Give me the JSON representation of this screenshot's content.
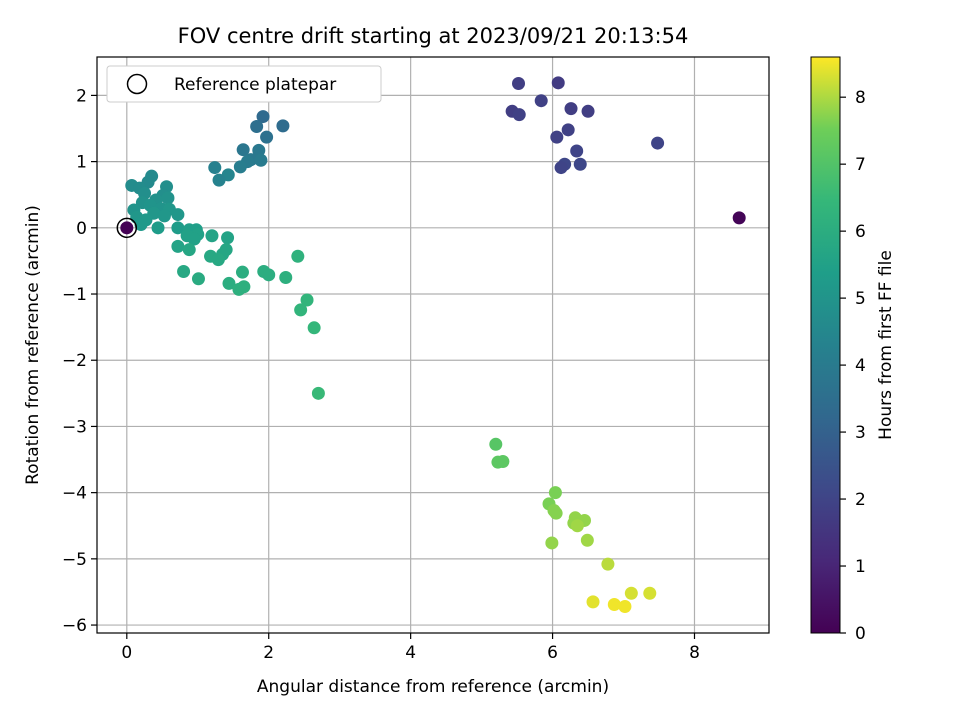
{
  "chart_data": {
    "type": "scatter",
    "title": "FOV centre drift starting at 2023/09/21 20:13:54",
    "xlabel": "Angular distance from reference (arcmin)",
    "ylabel": "Rotation from reference (arcmin)",
    "colorbar_label": "Hours from first FF file",
    "xlim": [
      -0.42,
      9.05
    ],
    "ylim": [
      -6.12,
      2.58
    ],
    "x_ticks": [
      0,
      2,
      4,
      6,
      8
    ],
    "y_ticks": [
      2,
      1,
      0,
      -1,
      -2,
      -3,
      -4,
      -5,
      -6
    ],
    "colorbar_range": [
      0,
      8.6
    ],
    "colorbar_ticks": [
      0,
      1,
      2,
      3,
      4,
      5,
      6,
      7,
      8
    ],
    "colormap": "viridis",
    "grid": true,
    "legend": {
      "position": "top-left",
      "label": "Reference platepar",
      "marker": "open-circle"
    },
    "reference_point": {
      "x": 0,
      "y": 0
    },
    "points": [
      {
        "x": 0.0,
        "y": 0.0,
        "t": 0.0
      },
      {
        "x": 8.63,
        "y": 0.15,
        "t": 0.1
      },
      {
        "x": 5.52,
        "y": 2.18,
        "t": 1.8
      },
      {
        "x": 6.08,
        "y": 2.19,
        "t": 1.7
      },
      {
        "x": 5.84,
        "y": 1.92,
        "t": 1.9
      },
      {
        "x": 5.43,
        "y": 1.76,
        "t": 1.8
      },
      {
        "x": 5.53,
        "y": 1.71,
        "t": 1.9
      },
      {
        "x": 6.26,
        "y": 1.8,
        "t": 1.8
      },
      {
        "x": 6.5,
        "y": 1.76,
        "t": 1.8
      },
      {
        "x": 6.22,
        "y": 1.48,
        "t": 1.9
      },
      {
        "x": 6.06,
        "y": 1.37,
        "t": 1.9
      },
      {
        "x": 7.48,
        "y": 1.28,
        "t": 2.0
      },
      {
        "x": 6.34,
        "y": 1.16,
        "t": 2.0
      },
      {
        "x": 6.17,
        "y": 0.96,
        "t": 2.1
      },
      {
        "x": 6.12,
        "y": 0.91,
        "t": 2.0
      },
      {
        "x": 6.39,
        "y": 0.96,
        "t": 2.1
      },
      {
        "x": 1.92,
        "y": 1.68,
        "t": 3.3
      },
      {
        "x": 1.83,
        "y": 1.53,
        "t": 3.5
      },
      {
        "x": 2.2,
        "y": 1.54,
        "t": 3.4
      },
      {
        "x": 1.97,
        "y": 1.37,
        "t": 3.6
      },
      {
        "x": 1.64,
        "y": 1.18,
        "t": 3.8
      },
      {
        "x": 1.86,
        "y": 1.17,
        "t": 3.9
      },
      {
        "x": 1.75,
        "y": 1.03,
        "t": 3.9
      },
      {
        "x": 1.89,
        "y": 1.02,
        "t": 4.0
      },
      {
        "x": 1.7,
        "y": 1.0,
        "t": 4.0
      },
      {
        "x": 1.6,
        "y": 0.92,
        "t": 4.1
      },
      {
        "x": 1.24,
        "y": 0.91,
        "t": 4.2
      },
      {
        "x": 1.43,
        "y": 0.8,
        "t": 4.4
      },
      {
        "x": 1.3,
        "y": 0.72,
        "t": 4.3
      },
      {
        "x": 0.35,
        "y": 0.78,
        "t": 4.6
      },
      {
        "x": 0.3,
        "y": 0.69,
        "t": 4.6
      },
      {
        "x": 0.07,
        "y": 0.64,
        "t": 4.7
      },
      {
        "x": 0.18,
        "y": 0.6,
        "t": 4.7
      },
      {
        "x": 0.56,
        "y": 0.62,
        "t": 4.8
      },
      {
        "x": 0.25,
        "y": 0.52,
        "t": 4.8
      },
      {
        "x": 0.51,
        "y": 0.49,
        "t": 4.8
      },
      {
        "x": 0.58,
        "y": 0.45,
        "t": 4.9
      },
      {
        "x": 0.41,
        "y": 0.42,
        "t": 4.9
      },
      {
        "x": 0.22,
        "y": 0.38,
        "t": 4.9
      },
      {
        "x": 0.33,
        "y": 0.34,
        "t": 5.0
      },
      {
        "x": 0.48,
        "y": 0.29,
        "t": 5.0
      },
      {
        "x": 0.1,
        "y": 0.27,
        "t": 5.0
      },
      {
        "x": 0.6,
        "y": 0.28,
        "t": 5.1
      },
      {
        "x": 0.38,
        "y": 0.22,
        "t": 5.1
      },
      {
        "x": 0.72,
        "y": 0.2,
        "t": 5.1
      },
      {
        "x": 0.53,
        "y": 0.18,
        "t": 5.1
      },
      {
        "x": 0.14,
        "y": 0.16,
        "t": 5.1
      },
      {
        "x": 0.27,
        "y": 0.12,
        "t": 5.2
      },
      {
        "x": 0.2,
        "y": 0.05,
        "t": 5.2
      },
      {
        "x": 0.44,
        "y": 0.0,
        "t": 5.3
      },
      {
        "x": 0.72,
        "y": 0.0,
        "t": 5.3
      },
      {
        "x": 0.88,
        "y": -0.03,
        "t": 5.4
      },
      {
        "x": 0.98,
        "y": -0.03,
        "t": 5.4
      },
      {
        "x": 1.0,
        "y": -0.1,
        "t": 5.5
      },
      {
        "x": 0.85,
        "y": -0.12,
        "t": 5.5
      },
      {
        "x": 0.95,
        "y": -0.17,
        "t": 5.5
      },
      {
        "x": 1.42,
        "y": -0.15,
        "t": 5.6
      },
      {
        "x": 1.2,
        "y": -0.12,
        "t": 5.6
      },
      {
        "x": 0.72,
        "y": -0.28,
        "t": 5.6
      },
      {
        "x": 0.88,
        "y": -0.33,
        "t": 5.7
      },
      {
        "x": 1.4,
        "y": -0.33,
        "t": 5.7
      },
      {
        "x": 1.35,
        "y": -0.4,
        "t": 5.7
      },
      {
        "x": 1.18,
        "y": -0.43,
        "t": 5.8
      },
      {
        "x": 1.29,
        "y": -0.48,
        "t": 5.8
      },
      {
        "x": 0.8,
        "y": -0.66,
        "t": 5.8
      },
      {
        "x": 1.01,
        "y": -0.77,
        "t": 5.9
      },
      {
        "x": 1.63,
        "y": -0.67,
        "t": 6.0
      },
      {
        "x": 1.93,
        "y": -0.66,
        "t": 6.0
      },
      {
        "x": 2.0,
        "y": -0.71,
        "t": 6.0
      },
      {
        "x": 2.24,
        "y": -0.75,
        "t": 6.1
      },
      {
        "x": 1.44,
        "y": -0.84,
        "t": 6.0
      },
      {
        "x": 1.65,
        "y": -0.89,
        "t": 6.1
      },
      {
        "x": 1.58,
        "y": -0.93,
        "t": 6.1
      },
      {
        "x": 2.41,
        "y": -0.43,
        "t": 6.2
      },
      {
        "x": 2.54,
        "y": -1.09,
        "t": 6.3
      },
      {
        "x": 2.45,
        "y": -1.24,
        "t": 6.3
      },
      {
        "x": 2.64,
        "y": -1.51,
        "t": 6.4
      },
      {
        "x": 2.7,
        "y": -2.5,
        "t": 6.5
      },
      {
        "x": 5.2,
        "y": -3.27,
        "t": 7.1
      },
      {
        "x": 5.23,
        "y": -3.54,
        "t": 7.2
      },
      {
        "x": 5.3,
        "y": -3.53,
        "t": 7.2
      },
      {
        "x": 6.04,
        "y": -4.0,
        "t": 7.6
      },
      {
        "x": 5.95,
        "y": -4.17,
        "t": 7.6
      },
      {
        "x": 6.02,
        "y": -4.27,
        "t": 7.7
      },
      {
        "x": 6.05,
        "y": -4.31,
        "t": 7.7
      },
      {
        "x": 6.32,
        "y": -4.38,
        "t": 7.8
      },
      {
        "x": 6.45,
        "y": -4.42,
        "t": 7.8
      },
      {
        "x": 6.3,
        "y": -4.46,
        "t": 7.8
      },
      {
        "x": 6.35,
        "y": -4.5,
        "t": 7.9
      },
      {
        "x": 6.49,
        "y": -4.72,
        "t": 7.9
      },
      {
        "x": 5.99,
        "y": -4.76,
        "t": 7.8
      },
      {
        "x": 6.78,
        "y": -5.08,
        "t": 8.1
      },
      {
        "x": 7.11,
        "y": -5.52,
        "t": 8.3
      },
      {
        "x": 7.37,
        "y": -5.52,
        "t": 8.3
      },
      {
        "x": 6.57,
        "y": -5.65,
        "t": 8.4
      },
      {
        "x": 6.87,
        "y": -5.69,
        "t": 8.5
      },
      {
        "x": 7.02,
        "y": -5.72,
        "t": 8.5
      }
    ]
  }
}
